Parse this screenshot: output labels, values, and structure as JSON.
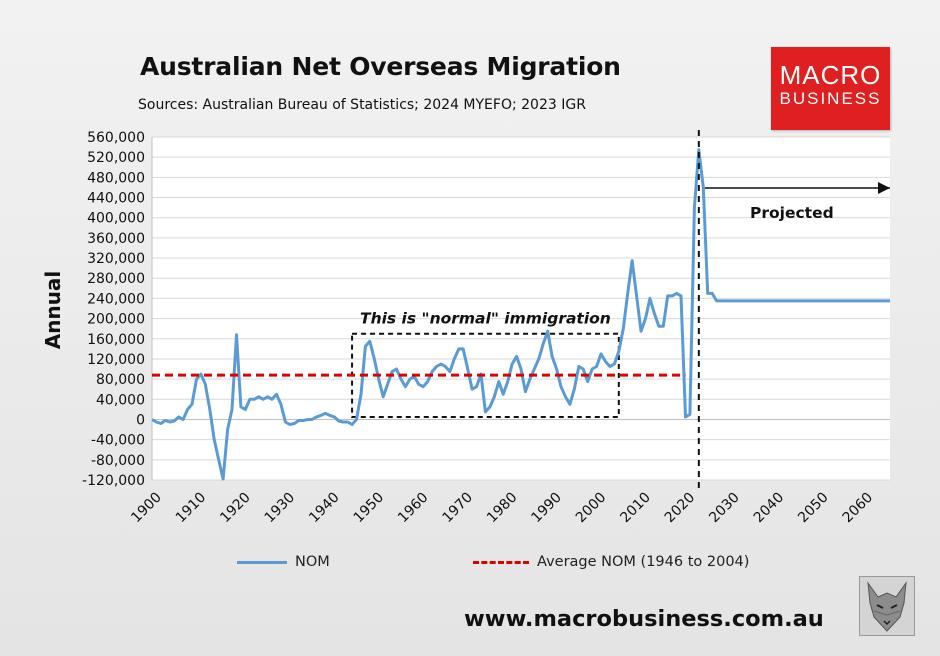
{
  "header": {
    "title": "Australian Net Overseas Migration",
    "subtitle": "Sources: Australian Bureau of Statistics; 2024 MYEFO; 2023 IGR"
  },
  "logo": {
    "line1": "MACRO",
    "line2": "BUSINESS",
    "color": "#e02020"
  },
  "footer": {
    "website": "www.macrobusiness.com.au",
    "logo_icon": "wolf-logo-icon"
  },
  "chart_data": {
    "type": "line",
    "title": "Australian Net Overseas Migration",
    "ylabel": "Annual",
    "xlabel": "",
    "xlim": [
      1900,
      2066
    ],
    "ylim": [
      -120000,
      560000
    ],
    "yticks": [
      -120000,
      -80000,
      -40000,
      0,
      40000,
      80000,
      120000,
      160000,
      200000,
      240000,
      280000,
      320000,
      360000,
      400000,
      440000,
      480000,
      520000,
      560000
    ],
    "ytick_labels": [
      "-120,000",
      "-80,000",
      "-40,000",
      "0",
      "40,000",
      "80,000",
      "120,000",
      "160,000",
      "200,000",
      "240,000",
      "280,000",
      "320,000",
      "360,000",
      "400,000",
      "440,000",
      "480,000",
      "520,000",
      "560,000"
    ],
    "xticks": [
      1900,
      1910,
      1920,
      1930,
      1940,
      1950,
      1960,
      1970,
      1980,
      1990,
      2000,
      2010,
      2020,
      2030,
      2040,
      2050,
      2060
    ],
    "xtick_labels": [
      "1900",
      "1910",
      "1920",
      "1930",
      "1940",
      "1950",
      "1960",
      "1970",
      "1980",
      "1990",
      "2000",
      "2010",
      "2020",
      "2030",
      "2040",
      "2050",
      "2060"
    ],
    "grid": "horizontal",
    "legend_position": "bottom",
    "series": [
      {
        "name": "NOM",
        "color": "#5b9bd5",
        "style": "solid",
        "x": [
          1900,
          1901,
          1902,
          1903,
          1904,
          1905,
          1906,
          1907,
          1908,
          1909,
          1910,
          1911,
          1912,
          1913,
          1914,
          1915,
          1916,
          1917,
          1918,
          1919,
          1920,
          1921,
          1922,
          1923,
          1924,
          1925,
          1926,
          1927,
          1928,
          1929,
          1930,
          1931,
          1932,
          1933,
          1934,
          1935,
          1936,
          1937,
          1938,
          1939,
          1940,
          1941,
          1942,
          1943,
          1944,
          1945,
          1946,
          1947,
          1948,
          1949,
          1950,
          1951,
          1952,
          1953,
          1954,
          1955,
          1956,
          1957,
          1958,
          1959,
          1960,
          1961,
          1962,
          1963,
          1964,
          1965,
          1966,
          1967,
          1968,
          1969,
          1970,
          1971,
          1972,
          1973,
          1974,
          1975,
          1976,
          1977,
          1978,
          1979,
          1980,
          1981,
          1982,
          1983,
          1984,
          1985,
          1986,
          1987,
          1988,
          1989,
          1990,
          1991,
          1992,
          1993,
          1994,
          1995,
          1996,
          1997,
          1998,
          1999,
          2000,
          2001,
          2002,
          2003,
          2004,
          2005,
          2006,
          2007,
          2008,
          2009,
          2010,
          2011,
          2012,
          2013,
          2014,
          2015,
          2016,
          2017,
          2018,
          2019,
          2020,
          2021,
          2022,
          2023,
          2024,
          2025,
          2026,
          2027,
          2066
        ],
        "values": [
          0,
          -5000,
          -8000,
          -2000,
          -5000,
          -3000,
          5000,
          0,
          20000,
          30000,
          80000,
          90000,
          70000,
          20000,
          -40000,
          -80000,
          -118000,
          -20000,
          20000,
          168000,
          25000,
          20000,
          40000,
          40000,
          45000,
          40000,
          45000,
          40000,
          50000,
          30000,
          -5000,
          -10000,
          -8000,
          -2000,
          -2000,
          0,
          0,
          5000,
          8000,
          12000,
          8000,
          5000,
          -3000,
          -5000,
          -5000,
          -10000,
          0,
          50000,
          145000,
          155000,
          120000,
          80000,
          45000,
          70000,
          95000,
          100000,
          80000,
          65000,
          80000,
          85000,
          70000,
          65000,
          75000,
          95000,
          105000,
          110000,
          105000,
          95000,
          120000,
          140000,
          140000,
          100000,
          60000,
          65000,
          90000,
          15000,
          25000,
          45000,
          75000,
          50000,
          75000,
          110000,
          125000,
          100000,
          55000,
          80000,
          100000,
          120000,
          150000,
          175000,
          125000,
          100000,
          65000,
          45000,
          30000,
          60000,
          105000,
          100000,
          75000,
          100000,
          105000,
          130000,
          115000,
          105000,
          110000,
          135000,
          180000,
          250000,
          315000,
          245000,
          175000,
          200000,
          240000,
          210000,
          185000,
          185000,
          245000,
          245000,
          250000,
          245000,
          5000,
          10000,
          420000,
          535000,
          460000,
          250000,
          250000,
          235000,
          235000
        ]
      },
      {
        "name": "Average NOM (1946 to 2004)",
        "color": "#e00000",
        "style": "dashed",
        "x": [
          1900,
          2020
        ],
        "values": [
          88000,
          88000
        ]
      }
    ],
    "annotations": [
      {
        "text": "This is \"normal\" immigration",
        "box": {
          "x": [
            1945,
            2005
          ],
          "y": [
            5000,
            170000
          ]
        }
      },
      {
        "text": "Projected",
        "divider_x": 2023
      }
    ]
  }
}
